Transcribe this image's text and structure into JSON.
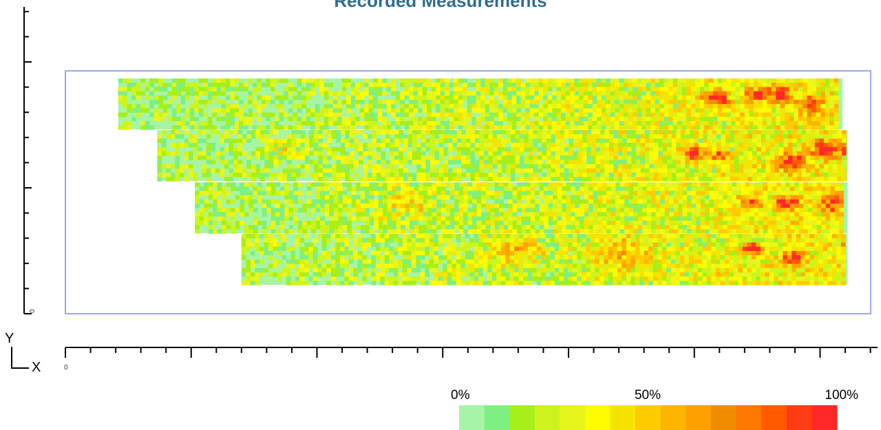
{
  "page": {
    "title": "Recorded Measurements"
  },
  "chart_data": {
    "type": "heatmap",
    "title": "Recorded Measurements",
    "x_axis": {
      "letter": "X",
      "origin_label": "0"
    },
    "y_axis": {
      "letter": "Y",
      "origin_label": "0"
    },
    "legend": {
      "labels": [
        "0%",
        "50%",
        "100%"
      ],
      "colors": [
        "#a6f5a6",
        "#7ef081",
        "#a8ef1a",
        "#cdf51d",
        "#e8f51c",
        "#fffb00",
        "#f5e400",
        "#ffcc00",
        "#ffb400",
        "#ffa000",
        "#f08c00",
        "#ff7800",
        "#ff5a00",
        "#ff3c14",
        "#ff2828"
      ]
    },
    "rows": [
      {
        "band": 1,
        "x_start": 0.42,
        "x_end": 6.18,
        "intensity_trend": "low on left, high (red spots) on right"
      },
      {
        "band": 2,
        "x_start": 0.73,
        "x_end": 6.22,
        "intensity_trend": "low on left, high (red spots) on right"
      },
      {
        "band": 3,
        "x_start": 1.03,
        "x_end": 6.22,
        "intensity_trend": "mostly low-to-mid, red spots near right"
      },
      {
        "band": 4,
        "x_start": 1.4,
        "x_end": 6.22,
        "intensity_trend": "mid in center, high at far right"
      }
    ]
  }
}
